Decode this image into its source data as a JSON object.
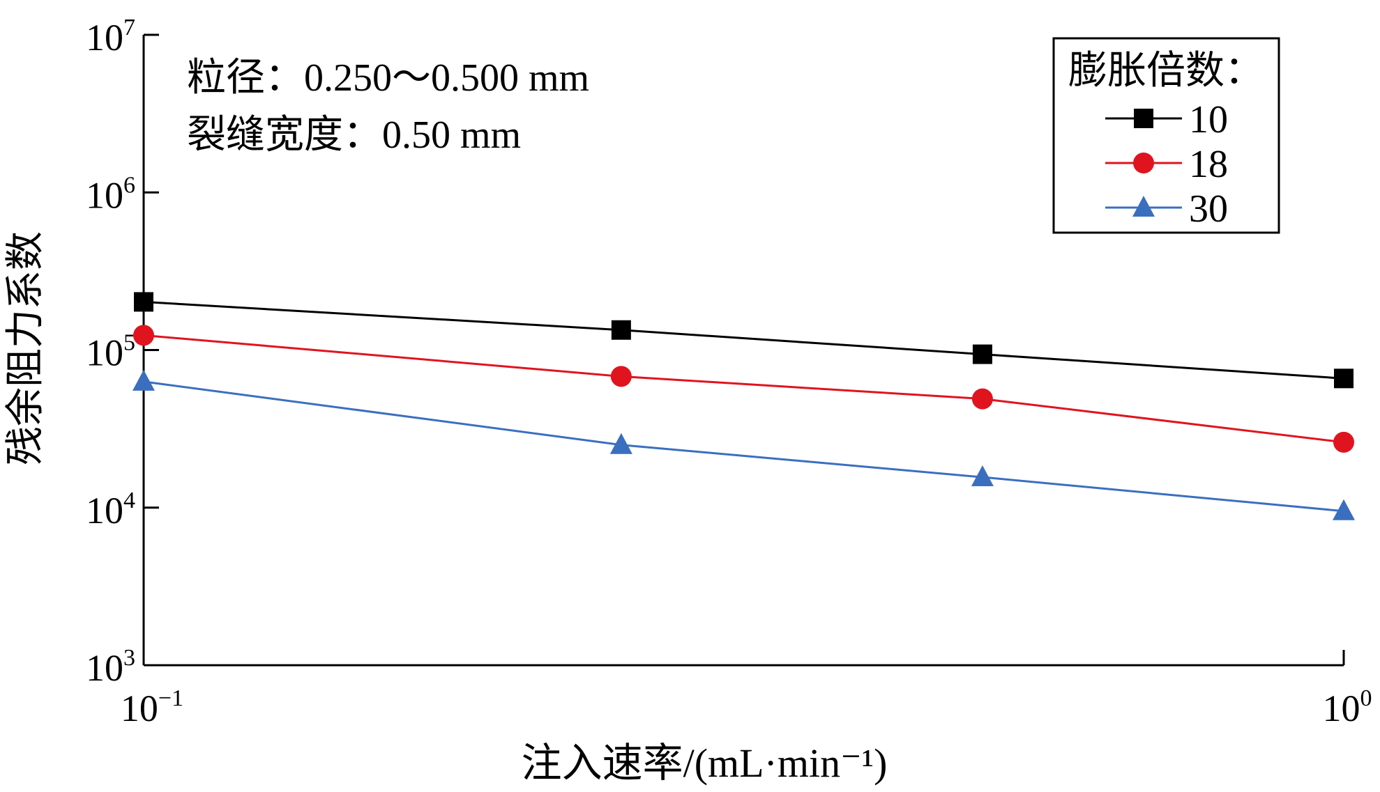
{
  "chart_data": {
    "type": "line",
    "title": "",
    "xlabel": "注入速率/(mL·min⁻¹)",
    "ylabel": "残余阻力系数",
    "x_scale": "log",
    "y_scale": "log",
    "xlim": [
      0.1,
      1
    ],
    "ylim": [
      1000,
      10000000
    ],
    "x_ticks": [
      {
        "value": 0.1,
        "base": "10",
        "exp": "−1"
      },
      {
        "value": 1,
        "base": "10",
        "exp": "0"
      }
    ],
    "y_ticks": [
      {
        "value": 1000,
        "base": "10",
        "exp": "3"
      },
      {
        "value": 10000,
        "base": "10",
        "exp": "4"
      },
      {
        "value": 100000,
        "base": "10",
        "exp": "5"
      },
      {
        "value": 1000000,
        "base": "10",
        "exp": "6"
      },
      {
        "value": 10000000,
        "base": "10",
        "exp": "7"
      }
    ],
    "grid": false,
    "annotations": [
      "粒径：0.250～0.500 mm",
      "裂缝宽度：0.50 mm"
    ],
    "legend": {
      "title": "膨胀倍数：",
      "placement": "top-right"
    },
    "x": [
      0.1,
      0.25,
      0.5,
      1.0
    ],
    "series": [
      {
        "name": "10",
        "color": "#000000",
        "marker": "square",
        "values": [
          202000,
          134000,
          94000,
          66000
        ]
      },
      {
        "name": "18",
        "color": "#e0141e",
        "marker": "circle",
        "values": [
          124000,
          68000,
          49000,
          26000
        ]
      },
      {
        "name": "30",
        "color": "#3a6fbf",
        "marker": "triangle",
        "values": [
          63000,
          25000,
          15600,
          9500
        ]
      }
    ]
  }
}
